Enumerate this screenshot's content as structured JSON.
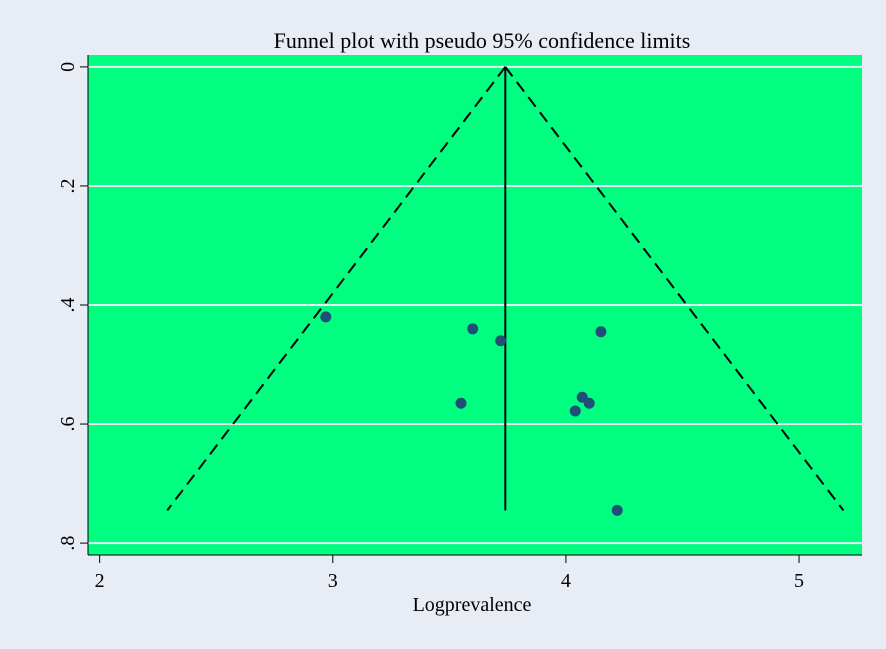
{
  "chart_data": {
    "type": "scatter",
    "title": "Funnel plot with pseudo 95% confidence limits",
    "xlabel": "Logprevalence",
    "ylabel": "",
    "xlim": [
      1.95,
      5.27
    ],
    "ylim": [
      -0.02,
      0.82
    ],
    "y_reversed": true,
    "x_ticks": [
      {
        "value": 2,
        "label": "2"
      },
      {
        "value": 3,
        "label": "3"
      },
      {
        "value": 4,
        "label": "4"
      },
      {
        "value": 5,
        "label": "5"
      }
    ],
    "y_ticks": [
      {
        "value": 0,
        "label": "0"
      },
      {
        "value": 0.2,
        "label": ".2"
      },
      {
        "value": 0.4,
        "label": ".4"
      },
      {
        "value": 0.6,
        "label": ".6"
      },
      {
        "value": 0.8,
        "label": ".8"
      }
    ],
    "grid": true,
    "legend": "none",
    "points": [
      {
        "x": 2.97,
        "y": 0.42
      },
      {
        "x": 3.6,
        "y": 0.44
      },
      {
        "x": 3.72,
        "y": 0.46
      },
      {
        "x": 4.15,
        "y": 0.445
      },
      {
        "x": 3.55,
        "y": 0.565
      },
      {
        "x": 4.07,
        "y": 0.555
      },
      {
        "x": 4.1,
        "y": 0.565
      },
      {
        "x": 4.04,
        "y": 0.578
      },
      {
        "x": 4.22,
        "y": 0.745
      }
    ],
    "summary_estimate": 3.74,
    "funnel_bottom_se": 0.745,
    "funnel_bottom_x": [
      2.29,
      5.19
    ],
    "colors": {
      "plot_background": "#00ff80",
      "outer_background": "#e8ecf5",
      "gridline": "#e8ecf5",
      "points": "#1f4e79",
      "lines": "#000000"
    }
  }
}
